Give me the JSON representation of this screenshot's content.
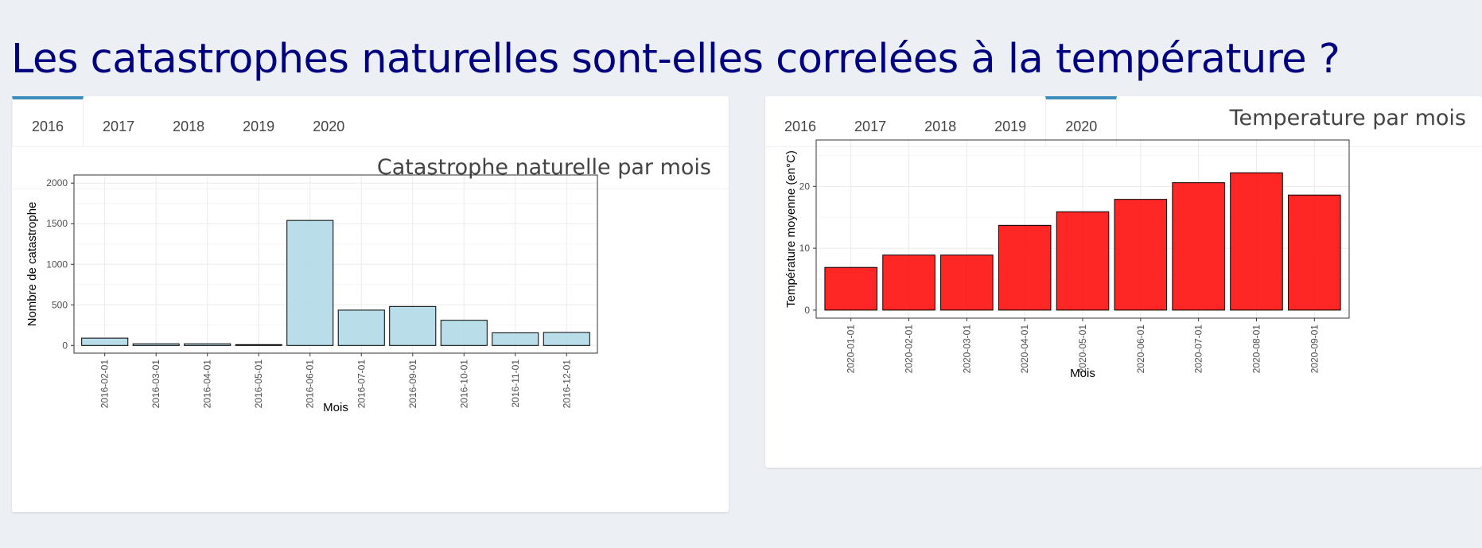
{
  "page": {
    "title": "Les catastrophes naturelles sont-elles correlées à la température ?"
  },
  "left_panel": {
    "tabs": [
      {
        "label": "2016",
        "active": true
      },
      {
        "label": "2017",
        "active": false
      },
      {
        "label": "2018",
        "active": false
      },
      {
        "label": "2019",
        "active": false
      },
      {
        "label": "2020",
        "active": false
      }
    ],
    "title": "Catastrophe naturelle par mois"
  },
  "right_panel": {
    "tabs": [
      {
        "label": "2016",
        "active": false
      },
      {
        "label": "2017",
        "active": false
      },
      {
        "label": "2018",
        "active": false
      },
      {
        "label": "2019",
        "active": false
      },
      {
        "label": "2020",
        "active": true
      }
    ],
    "title": "Temperature par mois"
  },
  "colors": {
    "title": "#000080",
    "tab_active_accent": "#3c8dbc",
    "bar_left": "#add8e6",
    "bar_right": "#ff0000"
  },
  "chart_data": [
    {
      "type": "bar",
      "categories": [
        "2016-02-01",
        "2016-03-01",
        "2016-04-01",
        "2016-05-01",
        "2016-06-01",
        "2016-07-01",
        "2016-09-01",
        "2016-10-01",
        "2016-11-01",
        "2016-12-01"
      ],
      "values": [
        90,
        20,
        20,
        10,
        1540,
        435,
        480,
        310,
        155,
        160
      ],
      "xlabel": "Mois",
      "ylabel": "Nombre de catastrophe",
      "ylim": [
        -95,
        2100
      ],
      "yticks": [
        0,
        500,
        1000,
        1500,
        2000
      ],
      "grid": true
    },
    {
      "type": "bar",
      "categories": [
        "2020-01-01",
        "2020-02-01",
        "2020-03-01",
        "2020-04-01",
        "2020-05-01",
        "2020-06-01",
        "2020-07-01",
        "2020-08-01",
        "2020-09-01"
      ],
      "values": [
        6.9,
        8.9,
        8.9,
        13.7,
        15.9,
        17.9,
        20.6,
        22.2,
        18.6
      ],
      "xlabel": "Mois",
      "ylabel": "Température moyenne (en°C)",
      "ylim": [
        -1.3,
        27.5
      ],
      "yticks": [
        0,
        10,
        20
      ],
      "grid": true
    }
  ]
}
